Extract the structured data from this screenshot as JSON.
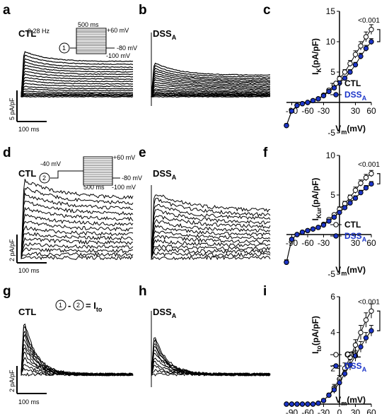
{
  "figure": {
    "colors": {
      "ctl": "#ffffff",
      "dss": "#1c35c8",
      "line": "#000000"
    },
    "panels": {
      "a": {
        "letter": "a",
        "cond": "CTL",
        "scale_y": "5 pA/pF",
        "scale_x": "100 ms"
      },
      "b": {
        "letter": "b",
        "cond_main": "DSS",
        "cond_sub": "A"
      },
      "d": {
        "letter": "d",
        "cond": "CTL",
        "scale_y": "2 pA/pF",
        "scale_x": "100 ms"
      },
      "e": {
        "letter": "e",
        "cond_main": "DSS",
        "cond_sub": "A"
      },
      "g": {
        "letter": "g",
        "cond": "CTL",
        "scale_y": "2 pA/pF",
        "scale_x": "100 ms"
      },
      "h": {
        "letter": "h",
        "cond_main": "DSS",
        "cond_sub": "A"
      }
    },
    "protocol1": {
      "num": "1",
      "freq": "0.28 Hz",
      "dur": "500 ms",
      "top": "+60 mV",
      "hold": "-80 mV",
      "bottom": "-100 mV"
    },
    "protocol2": {
      "num": "2",
      "pre": "-40 mV",
      "dur": "500 ms",
      "top": "+60 mV",
      "hold": "-80 mV",
      "bottom": "-100 mV"
    },
    "subtraction": {
      "c1": "1",
      "minus": "-",
      "c2": "2",
      "eq": "= I",
      "sub": "to"
    }
  },
  "chart_data": [
    {
      "panel": "c",
      "type": "line",
      "ylabel_main": "I",
      "ylabel_sub": "K",
      "ylabel_unit": "(pA/pF)",
      "xlabel_main": "V",
      "xlabel_sub": "m",
      "xlabel_unit": "(mV)",
      "xlim": [
        -100,
        60
      ],
      "ylim": [
        -5,
        15
      ],
      "xticks": [
        -90,
        -60,
        -30,
        30,
        60
      ],
      "yticks": [
        -5,
        5,
        10,
        15
      ],
      "annotation": "<0.001",
      "x": [
        -100,
        -90,
        -80,
        -70,
        -60,
        -50,
        -40,
        -30,
        -20,
        -10,
        0,
        10,
        20,
        30,
        40,
        50,
        60
      ],
      "series": [
        {
          "name": "CTL",
          "values": [
            -3.8,
            -1.4,
            -0.5,
            -0.2,
            0.0,
            0.3,
            0.6,
            1.2,
            2.0,
            2.8,
            3.9,
            5.0,
            6.4,
            7.9,
            9.3,
            10.8,
            12.0
          ],
          "err": [
            0.3,
            0.2,
            0.1,
            0.1,
            0.1,
            0.1,
            0.1,
            0.2,
            0.3,
            0.3,
            0.4,
            0.4,
            0.5,
            0.6,
            0.7,
            0.8,
            0.8
          ]
        },
        {
          "name": "DSS",
          "name_sub": "A",
          "values": [
            -3.8,
            -1.4,
            -0.5,
            -0.2,
            0.0,
            0.3,
            0.6,
            1.1,
            1.8,
            2.4,
            3.2,
            4.0,
            5.0,
            6.2,
            7.6,
            8.9,
            10.0
          ],
          "err": [
            0.3,
            0.2,
            0.1,
            0.1,
            0.1,
            0.1,
            0.1,
            0.2,
            0.2,
            0.3,
            0.3,
            0.3,
            0.4,
            0.4,
            0.5,
            0.5,
            0.5
          ]
        }
      ]
    },
    {
      "panel": "f",
      "type": "line",
      "ylabel_main": "I",
      "ylabel_sub": "Kur",
      "ylabel_unit": "(pA/pF)",
      "xlabel_main": "V",
      "xlabel_sub": "m",
      "xlabel_unit": "(mV)",
      "xlim": [
        -100,
        60
      ],
      "ylim": [
        -5,
        10
      ],
      "xticks": [
        -90,
        -60,
        -30,
        30,
        60
      ],
      "yticks": [
        -5,
        5,
        10
      ],
      "annotation": "<0.001",
      "x": [
        -100,
        -90,
        -80,
        -70,
        -60,
        -50,
        -40,
        -30,
        -20,
        -10,
        0,
        10,
        20,
        30,
        40,
        50,
        60
      ],
      "series": [
        {
          "name": "CTL",
          "values": [
            -3.5,
            -0.6,
            0.0,
            0.3,
            0.5,
            0.7,
            0.9,
            1.3,
            1.9,
            2.5,
            3.2,
            3.9,
            4.7,
            5.6,
            6.5,
            7.2,
            7.7
          ],
          "err": [
            0.3,
            0.1,
            0.1,
            0.1,
            0.1,
            0.1,
            0.1,
            0.1,
            0.2,
            0.2,
            0.3,
            0.3,
            0.3,
            0.4,
            0.4,
            0.4,
            0.4
          ]
        },
        {
          "name": "DSS",
          "name_sub": "A",
          "values": [
            -3.5,
            -0.6,
            0.0,
            0.3,
            0.5,
            0.7,
            0.9,
            1.2,
            1.7,
            2.2,
            2.8,
            3.4,
            4.0,
            4.6,
            5.3,
            5.9,
            6.4
          ],
          "err": [
            0.3,
            0.1,
            0.1,
            0.1,
            0.1,
            0.1,
            0.1,
            0.1,
            0.2,
            0.2,
            0.2,
            0.2,
            0.3,
            0.3,
            0.3,
            0.3,
            0.3
          ]
        }
      ]
    },
    {
      "panel": "i",
      "type": "line",
      "ylabel_main": "I",
      "ylabel_sub": "to",
      "ylabel_unit": "(pA/pF)",
      "xlabel_main": "V",
      "xlabel_sub": "m",
      "xlabel_unit": "(mV)",
      "xlim": [
        -100,
        60
      ],
      "ylim": [
        0,
        6
      ],
      "xticks": [
        -90,
        -60,
        -30,
        0,
        30,
        60
      ],
      "yticks": [
        2,
        4,
        6
      ],
      "annotation": "<0.001",
      "x": [
        -100,
        -90,
        -80,
        -70,
        -60,
        -50,
        -40,
        -30,
        -20,
        -10,
        0,
        10,
        20,
        30,
        40,
        50,
        60
      ],
      "series": [
        {
          "name": "CTL",
          "values": [
            0.0,
            0.0,
            0.0,
            0.0,
            0.0,
            0.0,
            0.05,
            0.2,
            0.5,
            0.9,
            1.4,
            2.0,
            2.6,
            3.3,
            4.0,
            4.7,
            5.2
          ],
          "err": [
            0.05,
            0.05,
            0.05,
            0.05,
            0.05,
            0.05,
            0.05,
            0.1,
            0.1,
            0.2,
            0.2,
            0.3,
            0.3,
            0.3,
            0.4,
            0.4,
            0.4
          ]
        },
        {
          "name": "DSS",
          "name_sub": "A",
          "values": [
            0.0,
            0.0,
            0.0,
            0.0,
            0.0,
            0.0,
            0.05,
            0.2,
            0.5,
            0.8,
            1.2,
            1.7,
            2.2,
            2.7,
            3.2,
            3.7,
            4.1
          ],
          "err": [
            0.05,
            0.05,
            0.05,
            0.05,
            0.05,
            0.05,
            0.05,
            0.1,
            0.1,
            0.2,
            0.2,
            0.2,
            0.3,
            0.3,
            0.3,
            0.3,
            0.3
          ]
        }
      ]
    }
  ]
}
